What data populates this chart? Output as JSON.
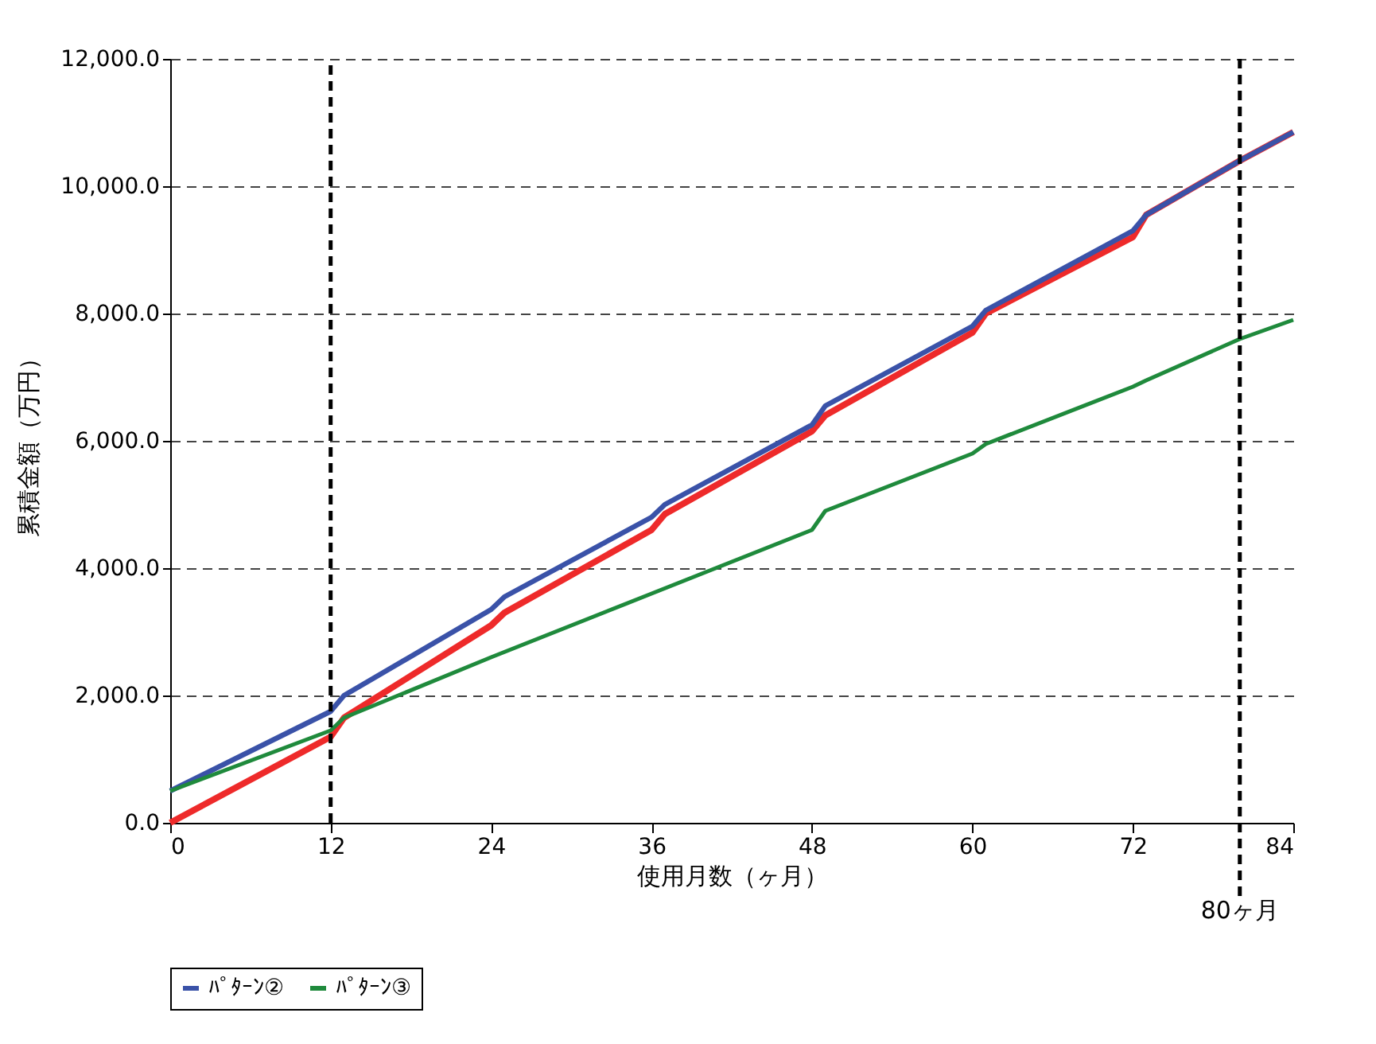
{
  "chart_data": {
    "type": "line",
    "xlabel": "使用月数（ヶ月）",
    "ylabel": "累積金額（万円）",
    "xlim": [
      0,
      84
    ],
    "xticks": [
      0,
      12,
      24,
      36,
      48,
      60,
      72,
      84
    ],
    "ylim": [
      0,
      12000
    ],
    "yticks": [
      {
        "value": 0,
        "label": "0.0"
      },
      {
        "value": 2000,
        "label": "2,000.0"
      },
      {
        "value": 4000,
        "label": "4,000.0"
      },
      {
        "value": 6000,
        "label": "6,000.0"
      },
      {
        "value": 8000,
        "label": "8,000.0"
      },
      {
        "value": 10000,
        "label": "10,000.0"
      },
      {
        "value": 12000,
        "label": "12,000.0"
      }
    ],
    "grid": "y",
    "legend": "bottom",
    "line_style": "solid",
    "marker": "none",
    "series": [
      {
        "color": "#ee2a2a",
        "x": [
          0,
          12,
          13,
          24,
          25,
          36,
          37,
          48,
          49,
          60,
          61,
          72,
          73,
          80,
          84
        ],
        "values": [
          0,
          1350,
          1650,
          3100,
          3300,
          4600,
          4850,
          6150,
          6400,
          7700,
          8000,
          9200,
          9550,
          10400,
          10850
        ]
      },
      {
        "name": "ﾊﾟﾀｰﾝ②",
        "color": "#3a52a8",
        "x": [
          0,
          12,
          13,
          24,
          25,
          36,
          37,
          48,
          49,
          60,
          61,
          72,
          73,
          80,
          84
        ],
        "values": [
          500,
          1750,
          2000,
          3350,
          3550,
          4800,
          5000,
          6250,
          6550,
          7800,
          8050,
          9300,
          9550,
          10400,
          10850
        ]
      },
      {
        "name": "ﾊﾟﾀｰﾝ③",
        "color": "#1f8a3c",
        "x": [
          0,
          12,
          13,
          24,
          36,
          48,
          49,
          60,
          61,
          72,
          73,
          80,
          84
        ],
        "values": [
          500,
          1450,
          1650,
          2600,
          3600,
          4600,
          4900,
          5800,
          5950,
          6850,
          6950,
          7600,
          7900
        ]
      }
    ],
    "ref_lines": [
      {
        "axis": "x",
        "value": 12,
        "line_style": "dashed",
        "color": "#000000"
      },
      {
        "axis": "x",
        "value": 80,
        "label": "80ヶ月",
        "line_style": "dashed",
        "color": "#000000"
      }
    ]
  }
}
